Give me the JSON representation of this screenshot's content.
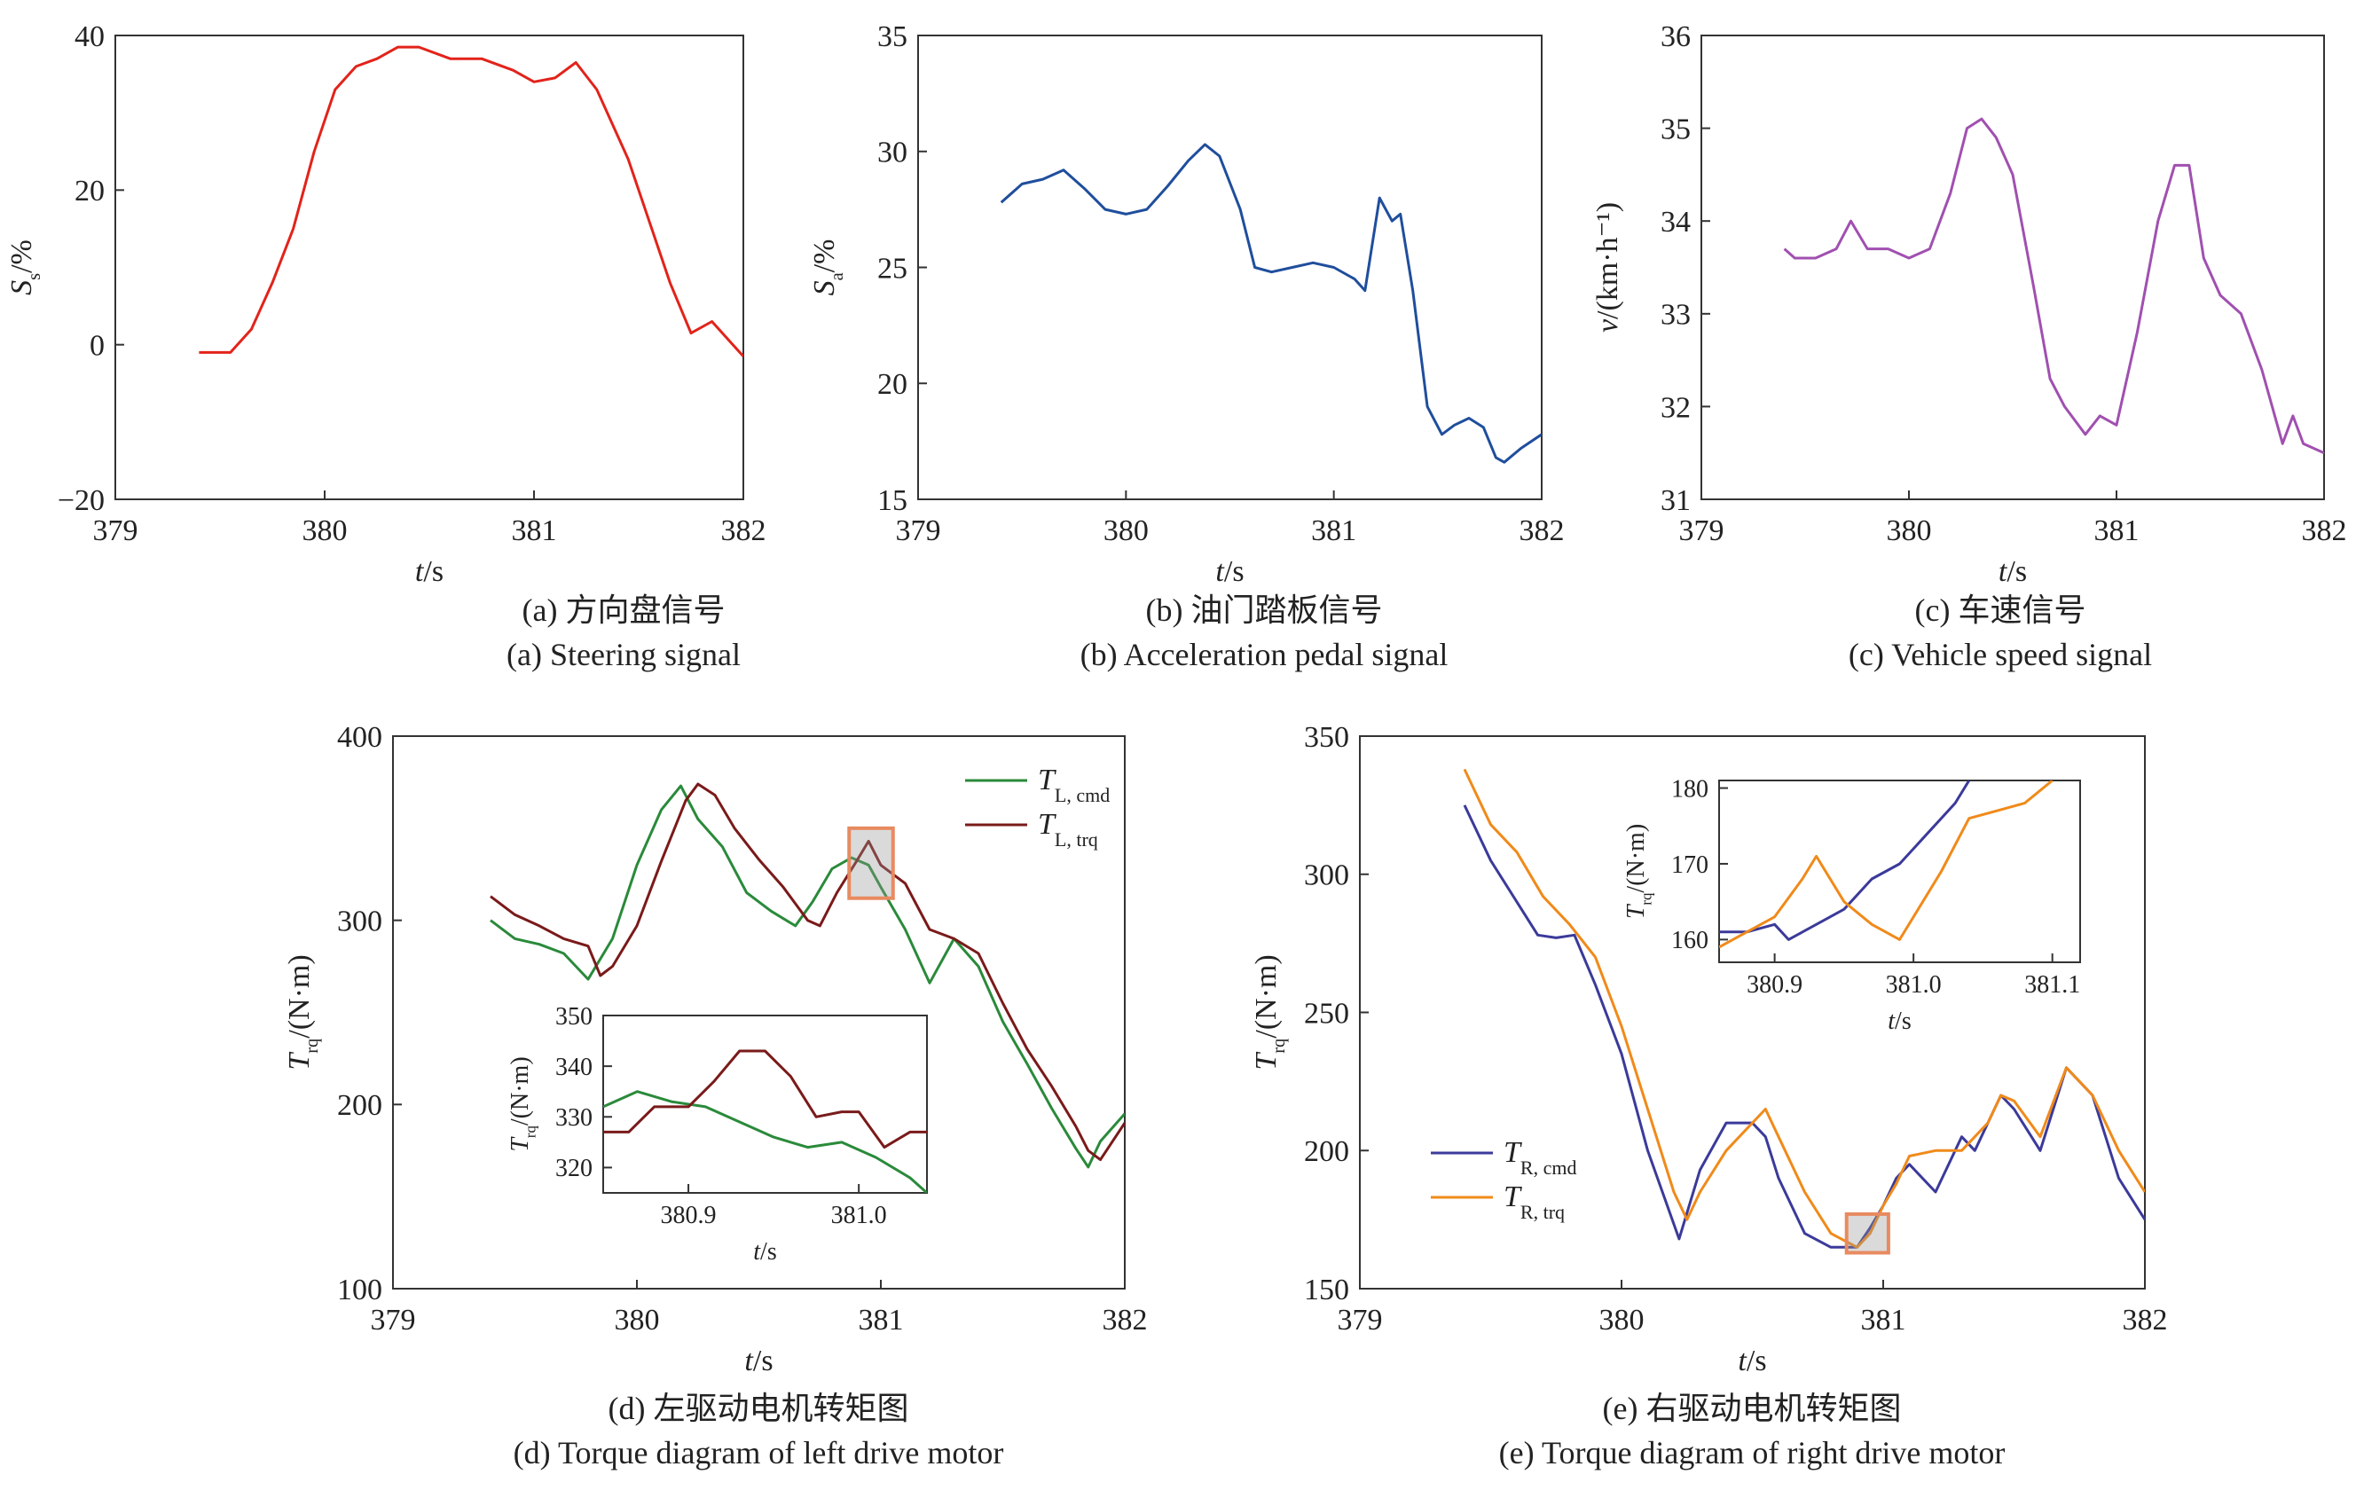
{
  "chart_data": [
    {
      "id": "a",
      "type": "line",
      "xlabel": "t/s",
      "ylabel": "S_s/%",
      "xlim": [
        379,
        382
      ],
      "ylim": [
        -20,
        40
      ],
      "xticks": [
        379,
        380,
        381,
        382
      ],
      "yticks": [
        -20,
        0,
        20,
        40
      ],
      "xtick_labels": [
        "379",
        "380",
        "381",
        "382"
      ],
      "ytick_labels": [
        "−20",
        "0",
        "20",
        "40"
      ],
      "caption_cn": "(a) 方向盘信号",
      "caption_en": "(a) Steering signal",
      "series": [
        {
          "color": "#e2231a",
          "x": [
            379.4,
            379.55,
            379.65,
            379.75,
            379.85,
            379.95,
            380.05,
            380.15,
            380.25,
            380.35,
            380.45,
            380.6,
            380.75,
            380.9,
            381.0,
            381.1,
            381.2,
            381.3,
            381.45,
            381.55,
            381.65,
            381.75,
            381.85,
            381.95,
            382.0
          ],
          "y": [
            -1,
            -1,
            2,
            8,
            15,
            25,
            33,
            36,
            37,
            38.5,
            38.5,
            37,
            37,
            35.5,
            34,
            34.5,
            36.5,
            33,
            24,
            16,
            8,
            1.5,
            3,
            0,
            -1.5
          ]
        }
      ]
    },
    {
      "id": "b",
      "type": "line",
      "xlabel": "t/s",
      "ylabel": "S_a/%",
      "xlim": [
        379,
        382
      ],
      "ylim": [
        15,
        35
      ],
      "xticks": [
        379,
        380,
        381,
        382
      ],
      "yticks": [
        15,
        20,
        25,
        30,
        35
      ],
      "xtick_labels": [
        "379",
        "380",
        "381",
        "382"
      ],
      "ytick_labels": [
        "15",
        "20",
        "25",
        "30",
        "35"
      ],
      "caption_cn": "(b) 油门踏板信号",
      "caption_en": "(b) Acceleration pedal signal",
      "series": [
        {
          "color": "#1f4e9c",
          "x": [
            379.4,
            379.5,
            379.6,
            379.7,
            379.8,
            379.9,
            380.0,
            380.1,
            380.2,
            380.3,
            380.38,
            380.45,
            380.55,
            380.62,
            380.7,
            380.8,
            380.9,
            381.0,
            381.1,
            381.15,
            381.22,
            381.28,
            381.32,
            381.38,
            381.45,
            381.52,
            381.58,
            381.65,
            381.72,
            381.78,
            381.82,
            381.9,
            382.0
          ],
          "y": [
            27.8,
            28.6,
            28.8,
            29.2,
            28.4,
            27.5,
            27.3,
            27.5,
            28.5,
            29.6,
            30.3,
            29.8,
            27.5,
            25.0,
            24.8,
            25.0,
            25.2,
            25.0,
            24.5,
            24.0,
            28.0,
            27.0,
            27.3,
            24.0,
            19.0,
            17.8,
            18.2,
            18.5,
            18.1,
            16.8,
            16.6,
            17.2,
            17.8
          ]
        }
      ]
    },
    {
      "id": "c",
      "type": "line",
      "xlabel": "t/s",
      "ylabel": "v/(km·h⁻¹)",
      "xlim": [
        379,
        382
      ],
      "ylim": [
        31,
        36
      ],
      "xticks": [
        379,
        380,
        381,
        382
      ],
      "yticks": [
        31,
        32,
        33,
        34,
        35,
        36
      ],
      "xtick_labels": [
        "379",
        "380",
        "381",
        "382"
      ],
      "ytick_labels": [
        "31",
        "32",
        "33",
        "34",
        "35",
        "36"
      ],
      "caption_cn": "(c) 车速信号",
      "caption_en": "(c) Vehicle speed signal",
      "series": [
        {
          "color": "#a050b0",
          "x": [
            379.4,
            379.45,
            379.55,
            379.65,
            379.72,
            379.8,
            379.9,
            380.0,
            380.1,
            380.2,
            380.28,
            380.35,
            380.42,
            380.5,
            380.6,
            380.68,
            380.75,
            380.85,
            380.92,
            381.0,
            381.1,
            381.2,
            381.28,
            381.35,
            381.42,
            381.5,
            381.6,
            381.7,
            381.8,
            381.85,
            381.9,
            382.0
          ],
          "y": [
            33.7,
            33.6,
            33.6,
            33.7,
            34.0,
            33.7,
            33.7,
            33.6,
            33.7,
            34.3,
            35.0,
            35.1,
            34.9,
            34.5,
            33.3,
            32.3,
            32.0,
            31.7,
            31.9,
            31.8,
            32.8,
            34.0,
            34.6,
            34.6,
            33.6,
            33.2,
            33.0,
            32.4,
            31.6,
            31.9,
            31.6,
            31.5
          ]
        }
      ]
    },
    {
      "id": "d",
      "type": "line",
      "xlabel": "t/s",
      "ylabel": "T_rq/(N·m)",
      "xlim": [
        379,
        382
      ],
      "ylim": [
        100,
        400
      ],
      "xticks": [
        379,
        380,
        381,
        382
      ],
      "yticks": [
        100,
        200,
        300,
        400
      ],
      "xtick_labels": [
        "379",
        "380",
        "381",
        "382"
      ],
      "ytick_labels": [
        "100",
        "200",
        "300",
        "400"
      ],
      "caption_cn": "(d) 左驱动电机转矩图",
      "caption_en": "(d) Torque diagram of left drive motor",
      "legend": [
        {
          "label": "T",
          "sub": "L, cmd",
          "color": "#2a8a3a"
        },
        {
          "label": "T",
          "sub": "L, trq",
          "color": "#7a1a1a"
        }
      ],
      "series": [
        {
          "name": "T_L,cmd",
          "color": "#2a8a3a",
          "x": [
            379.4,
            379.5,
            379.6,
            379.7,
            379.8,
            379.9,
            380.0,
            380.1,
            380.18,
            380.25,
            380.35,
            380.45,
            380.55,
            380.65,
            380.72,
            380.8,
            380.88,
            380.95,
            381.0,
            381.1,
            381.2,
            381.3,
            381.4,
            381.5,
            381.6,
            381.7,
            381.8,
            381.85,
            381.9,
            382.0
          ],
          "y": [
            300,
            290,
            287,
            282,
            268,
            290,
            330,
            360,
            373,
            355,
            340,
            315,
            305,
            297,
            310,
            328,
            334,
            330,
            318,
            295,
            266,
            290,
            275,
            245,
            222,
            198,
            176,
            166,
            180,
            195
          ]
        },
        {
          "name": "T_L,trq",
          "color": "#7a1a1a",
          "x": [
            379.4,
            379.5,
            379.6,
            379.7,
            379.8,
            379.85,
            379.9,
            380.0,
            380.1,
            380.2,
            380.25,
            380.32,
            380.4,
            380.5,
            380.6,
            380.7,
            380.75,
            380.82,
            380.9,
            380.95,
            381.0,
            381.05,
            381.1,
            381.2,
            381.3,
            381.4,
            381.5,
            381.6,
            381.7,
            381.8,
            381.85,
            381.9,
            382.0
          ],
          "y": [
            313,
            303,
            297,
            290,
            286,
            270,
            275,
            297,
            332,
            365,
            374,
            368,
            350,
            333,
            318,
            300,
            297,
            315,
            332,
            343,
            330,
            325,
            320,
            295,
            290,
            282,
            255,
            230,
            210,
            188,
            175,
            170,
            190
          ]
        }
      ],
      "inset": {
        "xlabel": "t/s",
        "ylabel": "T_rq/(N·m)",
        "xlim": [
          380.85,
          381.04
        ],
        "ylim": [
          315,
          350
        ],
        "xticks": [
          380.9,
          381.0
        ],
        "yticks": [
          320,
          330,
          340,
          350
        ],
        "xtick_labels": [
          "380.9",
          "381.0"
        ],
        "ytick_labels": [
          "320",
          "330",
          "340",
          "350"
        ],
        "series": [
          {
            "color": "#2a8a3a",
            "x": [
              380.85,
              380.87,
              380.89,
              380.91,
              380.93,
              380.95,
              380.97,
              380.99,
              381.01,
              381.03,
              381.04
            ],
            "y": [
              332,
              335,
              333,
              332,
              329,
              326,
              324,
              325,
              322,
              318,
              315
            ]
          },
          {
            "color": "#7a1a1a",
            "x": [
              380.85,
              380.865,
              380.88,
              380.9,
              380.915,
              380.93,
              380.945,
              380.96,
              380.975,
              380.99,
              381.0,
              381.015,
              381.03,
              381.04
            ],
            "y": [
              327,
              327,
              332,
              332,
              337,
              343,
              343,
              338,
              330,
              331,
              331,
              324,
              327,
              327
            ]
          }
        ]
      }
    },
    {
      "id": "e",
      "type": "line",
      "xlabel": "t/s",
      "ylabel": "T_rq/(N·m)",
      "xlim": [
        379,
        382
      ],
      "ylim": [
        150,
        350
      ],
      "xticks": [
        379,
        380,
        381,
        382
      ],
      "yticks": [
        150,
        200,
        250,
        300,
        350
      ],
      "xtick_labels": [
        "379",
        "380",
        "381",
        "382"
      ],
      "ytick_labels": [
        "150",
        "200",
        "250",
        "300",
        "350"
      ],
      "caption_cn": "(e) 右驱动电机转矩图",
      "caption_en": "(e) Torque diagram of right drive motor",
      "legend": [
        {
          "label": "T",
          "sub": "R, cmd",
          "color": "#3b3a9a"
        },
        {
          "label": "T",
          "sub": "R, trq",
          "color": "#f08a1a"
        }
      ],
      "series": [
        {
          "name": "T_R,cmd",
          "color": "#3b3a9a",
          "x": [
            379.4,
            379.5,
            379.6,
            379.68,
            379.75,
            379.82,
            379.9,
            380.0,
            380.1,
            380.22,
            380.3,
            380.4,
            380.5,
            380.55,
            380.6,
            380.7,
            380.8,
            380.9,
            380.95,
            381.0,
            381.05,
            381.1,
            381.2,
            381.3,
            381.35,
            381.45,
            381.5,
            381.6,
            381.7,
            381.8,
            381.9,
            382.0
          ],
          "y": [
            325,
            305,
            290,
            278,
            277,
            278,
            260,
            235,
            200,
            168,
            193,
            210,
            210,
            205,
            190,
            170,
            165,
            165,
            172,
            180,
            190,
            195,
            185,
            205,
            200,
            220,
            215,
            200,
            230,
            220,
            190,
            175
          ]
        },
        {
          "name": "T_R,trq",
          "color": "#f08a1a",
          "x": [
            379.4,
            379.5,
            379.6,
            379.7,
            379.8,
            379.9,
            380.0,
            380.1,
            380.2,
            380.25,
            380.3,
            380.4,
            380.5,
            380.55,
            380.6,
            380.7,
            380.8,
            380.9,
            380.95,
            381.0,
            381.05,
            381.1,
            381.2,
            381.3,
            381.4,
            381.45,
            381.5,
            381.6,
            381.7,
            381.8,
            381.9,
            382.0
          ],
          "y": [
            338,
            318,
            308,
            292,
            282,
            270,
            245,
            215,
            185,
            175,
            185,
            200,
            210,
            215,
            205,
            185,
            170,
            165,
            170,
            180,
            188,
            198,
            200,
            200,
            210,
            220,
            218,
            205,
            230,
            220,
            200,
            185
          ]
        }
      ],
      "inset": {
        "xlabel": "t/s",
        "ylabel": "T_rq/(N·m)",
        "xlim": [
          380.86,
          381.12
        ],
        "ylim": [
          157,
          181
        ],
        "xticks": [
          380.9,
          381.0,
          381.1
        ],
        "yticks": [
          160,
          170,
          180
        ],
        "xtick_labels": [
          "380.9",
          "381.0",
          "381.1"
        ],
        "ytick_labels": [
          "160",
          "170",
          "180"
        ],
        "series": [
          {
            "color": "#3b3a9a",
            "x": [
              380.86,
              380.88,
              380.9,
              380.91,
              380.93,
              380.95,
              380.97,
              380.99,
              381.01,
              381.03,
              381.04
            ],
            "y": [
              161,
              161,
              162,
              160,
              162,
              164,
              168,
              170,
              174,
              178,
              181
            ]
          },
          {
            "color": "#f08a1a",
            "x": [
              380.86,
              380.88,
              380.9,
              380.92,
              380.93,
              380.95,
              380.97,
              380.99,
              381.02,
              381.04,
              381.06,
              381.08,
              381.1
            ],
            "y": [
              159,
              161,
              163,
              168,
              171,
              165,
              162,
              160,
              169,
              176,
              177,
              178,
              181
            ]
          }
        ]
      }
    }
  ]
}
